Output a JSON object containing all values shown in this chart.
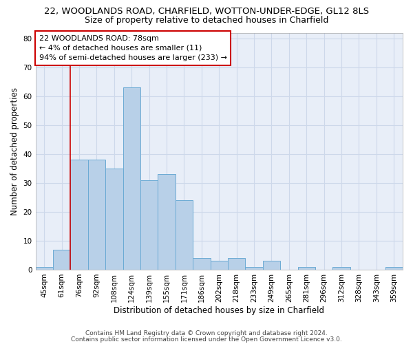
{
  "title1": "22, WOODLANDS ROAD, CHARFIELD, WOTTON-UNDER-EDGE, GL12 8LS",
  "title2": "Size of property relative to detached houses in Charfield",
  "xlabel": "Distribution of detached houses by size in Charfield",
  "ylabel": "Number of detached properties",
  "categories": [
    "45sqm",
    "61sqm",
    "76sqm",
    "92sqm",
    "108sqm",
    "124sqm",
    "139sqm",
    "155sqm",
    "171sqm",
    "186sqm",
    "202sqm",
    "218sqm",
    "233sqm",
    "249sqm",
    "265sqm",
    "281sqm",
    "296sqm",
    "312sqm",
    "328sqm",
    "343sqm",
    "359sqm"
  ],
  "bar_values": [
    1,
    7,
    38,
    38,
    35,
    63,
    31,
    33,
    24,
    4,
    3,
    4,
    1,
    3,
    0,
    1,
    0,
    1,
    0,
    0,
    1
  ],
  "bar_color": "#b8d0e8",
  "bar_edge_color": "#6aaad4",
  "vline_x_index": 2,
  "vline_color": "#cc0000",
  "annotation_line1": "22 WOODLANDS ROAD: 78sqm",
  "annotation_line2": "← 4% of detached houses are smaller (11)",
  "annotation_line3": "94% of semi-detached houses are larger (233) →",
  "annotation_box_color": "#ffffff",
  "annotation_box_edge_color": "#cc0000",
  "ylim": [
    0,
    82
  ],
  "yticks": [
    0,
    10,
    20,
    30,
    40,
    50,
    60,
    70,
    80
  ],
  "grid_color": "#cdd8ea",
  "bg_color": "#e8eef8",
  "footer1": "Contains HM Land Registry data © Crown copyright and database right 2024.",
  "footer2": "Contains public sector information licensed under the Open Government Licence v3.0.",
  "title1_fontsize": 9.5,
  "title2_fontsize": 9,
  "xlabel_fontsize": 8.5,
  "ylabel_fontsize": 8.5,
  "tick_fontsize": 7.5,
  "annotation_fontsize": 8,
  "footer_fontsize": 6.5
}
